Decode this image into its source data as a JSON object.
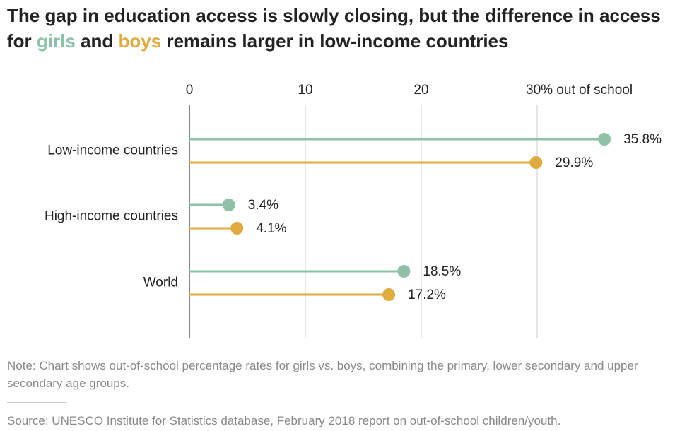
{
  "chart_data": {
    "type": "lollipop",
    "title": [
      "The gap in education access is slowly closing, but the difference in access for",
      "and",
      "remains larger in low-income countries"
    ],
    "categories": [
      "Low-income countries",
      "High-income countries",
      "World"
    ],
    "series": [
      {
        "name": "girls",
        "color": "#8fc1a9",
        "values": [
          35.8,
          3.4,
          18.5
        ],
        "value_labels": [
          "35.8%",
          "3.4%",
          "18.5%"
        ]
      },
      {
        "name": "boys",
        "color": "#dfac3f",
        "values": [
          29.9,
          4.1,
          17.2
        ],
        "value_labels": [
          "29.9%",
          "4.1%",
          "17.2%"
        ]
      }
    ],
    "xlim": [
      0,
      40
    ],
    "xticks": [
      0,
      10,
      20,
      {
        "value": 30,
        "label": "30% out of school"
      }
    ],
    "grid": true,
    "note": "Note: Chart shows out-of-school percentage rates for girls vs. boys, combining the primary, lower secondary and upper secondary age groups.",
    "source": "Source: UNESCO Institute for Statistics database, February 2018 report on out-of-school children/youth."
  }
}
